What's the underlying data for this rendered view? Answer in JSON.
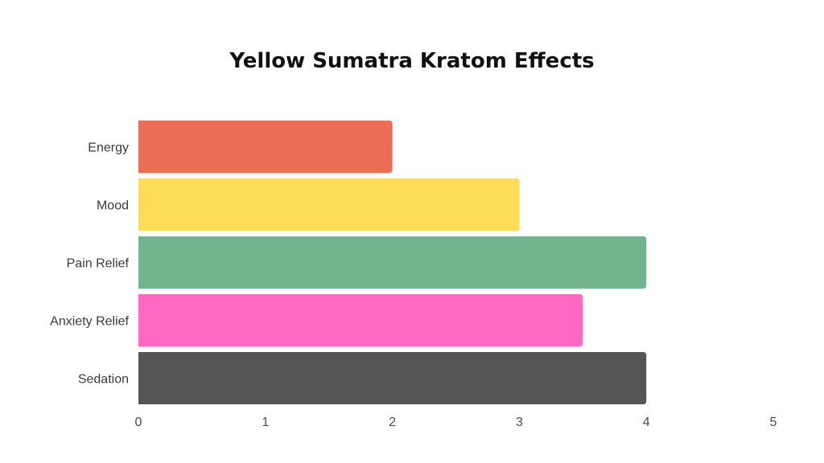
{
  "chart_data": {
    "type": "bar",
    "orientation": "horizontal",
    "title": "Yellow Sumatra Kratom Effects",
    "xlabel": "",
    "ylabel": "",
    "categories": [
      "Energy",
      "Mood",
      "Pain Relief",
      "Anxiety Relief",
      "Sedation"
    ],
    "values": [
      2,
      3,
      4,
      3.5,
      4
    ],
    "colors": [
      "#EC6E55",
      "#FEDC5A",
      "#72B48E",
      "#FF69C4",
      "#555555"
    ],
    "xlim": [
      0,
      5
    ],
    "ticks": [
      "0",
      "1",
      "2",
      "3",
      "4",
      "5"
    ],
    "grid": false,
    "legend": "none"
  }
}
